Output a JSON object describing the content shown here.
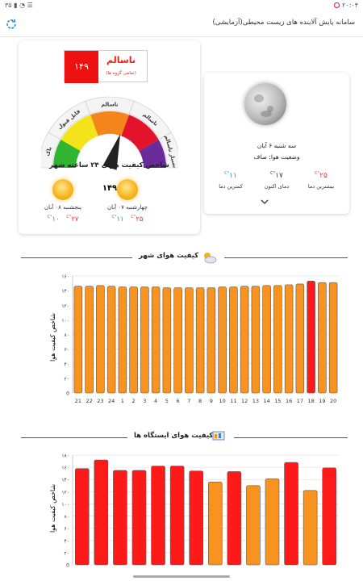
{
  "status_bar": {
    "time": "۲۰:۰۴",
    "battery": "۳۵"
  },
  "app": {
    "title": "سامانه پایش آلاینده های زیست محیطی(آزمایشی)"
  },
  "aqi": {
    "value": "۱۴۹",
    "status": "ناسالم",
    "status_note": "(تمامی گروه ها)",
    "gauge_value": 149,
    "gauge_value_text": "۱۴۹",
    "band_labels": [
      "پاک",
      "قابل قبول",
      "ناسالم",
      "ناسالم",
      "بسیار ناسالم",
      "خطرناک"
    ],
    "band_colors": [
      "#2fb52f",
      "#f4e21b",
      "#f3851a",
      "#e3132c",
      "#6a2a9a",
      "#7a1530"
    ],
    "index_title": "شاخص کیفیت هوای ۲۴ ساعته شهر"
  },
  "forecast": [
    {
      "day": "چهارشنبه ۰۷ آبان",
      "high": "۲۵",
      "low": "۱۱",
      "unit": "C°"
    },
    {
      "day": "پنجشنبه ۰۸ آبان",
      "high": "۲۷",
      "low": "۱۰",
      "unit": "C°"
    }
  ],
  "weather": {
    "date": "سه شنبه ۶ آبان",
    "condition": "وضعیت هوا: صاف",
    "max_temp": "۲۵",
    "max_label": "بیشترین دما",
    "now_temp": "۱۷",
    "now_label": "دمای اکنون",
    "min_temp": "۱۱",
    "min_label": "کمترین دما",
    "unit": "C°"
  },
  "city_section": {
    "title": "کیفیت هوای شهر",
    "icon": "cloud-sun-icon"
  },
  "stations_section": {
    "title": "کیفیت هوای ایستگاه ها",
    "icon": "station-icon"
  },
  "chart_data": [
    {
      "type": "bar",
      "ylabel": "شاخص کیفیت هوا",
      "ylim": [
        0,
        160
      ],
      "yticks": [
        "0",
        "۲۰",
        "۴۰",
        "۶۰",
        "۸۰",
        "۱۰۰",
        "۱۲۰",
        "۱۴۰",
        "۱۶۰"
      ],
      "categories": [
        "21",
        "22",
        "23",
        "24",
        "1",
        "2",
        "3",
        "4",
        "5",
        "6",
        "7",
        "8",
        "9",
        "10",
        "11",
        "12",
        "13",
        "14",
        "15",
        "16",
        "17",
        "18",
        "19",
        "20"
      ],
      "values": [
        146,
        146,
        147,
        146,
        145,
        145,
        145,
        145,
        144,
        144,
        144,
        144,
        144,
        145,
        145,
        146,
        146,
        147,
        147,
        148,
        149,
        153,
        151,
        151
      ],
      "colors": [
        "#f7931e",
        "#f7931e",
        "#f7931e",
        "#f7931e",
        "#f7931e",
        "#f7931e",
        "#f7931e",
        "#f7931e",
        "#f7931e",
        "#f7931e",
        "#f7931e",
        "#f7931e",
        "#f7931e",
        "#f7931e",
        "#f7931e",
        "#f7931e",
        "#f7931e",
        "#f7931e",
        "#f7931e",
        "#f7931e",
        "#f7931e",
        "#ff1a1a",
        "#f7931e",
        "#f7931e"
      ],
      "grid": true
    },
    {
      "type": "bar",
      "ylabel": "شاخص کیفیت هوا",
      "ylim": [
        0,
        180
      ],
      "yticks": [
        "0",
        "۲۰",
        "۴۰",
        "۶۰",
        "۸۰",
        "۱۰۰",
        "۱۲۰",
        "۱۴۰",
        "۱۶۰",
        "۱۸۰"
      ],
      "values": [
        158,
        172,
        155,
        155,
        162,
        162,
        154,
        136,
        153,
        130,
        141,
        168,
        122,
        159
      ],
      "colors": [
        "#ff1a1a",
        "#ff1a1a",
        "#ff1a1a",
        "#ff1a1a",
        "#ff1a1a",
        "#ff1a1a",
        "#ff1a1a",
        "#f7931e",
        "#ff1a1a",
        "#f7931e",
        "#f7931e",
        "#ff1a1a",
        "#f7931e",
        "#ff1a1a"
      ],
      "grid": true
    }
  ]
}
